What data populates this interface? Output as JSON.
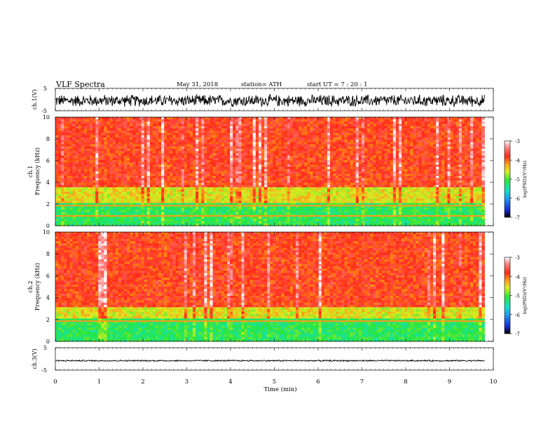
{
  "header": {
    "title": "VLF  Spectra",
    "date": "May 31, 2018",
    "station": "station= ATH",
    "start": "start  UT  =    7  : 20 : 1"
  },
  "colors": {
    "noise_trace": "#000000",
    "colormap": [
      "#000000",
      "#1a2bd6",
      "#1e9ef0",
      "#14e0c8",
      "#28e63c",
      "#d8ee20",
      "#ff9a1a",
      "#ff2a1a",
      "#ff8c8c",
      "#ffffff"
    ]
  },
  "chart_data": [
    {
      "type": "line",
      "panel": "ch1-waveform",
      "ylabel": "ch.1(V)",
      "ylim": [
        -5,
        5
      ],
      "yticks": [
        "5",
        "-5"
      ],
      "xlim": [
        0,
        10
      ],
      "signal": {
        "mean": -0.5,
        "amplitude": 3.0,
        "duration_min": 9.8
      }
    },
    {
      "type": "heatmap",
      "panel": "ch1-spectrogram",
      "ylabel": "ch.1\nFrequency (kHz)",
      "ylim": [
        0,
        10
      ],
      "yticks": [
        "10",
        "8",
        "6",
        "4",
        "2",
        "0"
      ],
      "xlim": [
        0,
        10
      ],
      "duration_min": 9.8,
      "colorbar": {
        "label": "log(PSD)(V²/Hz)",
        "range": [
          -7,
          -3
        ],
        "ticks": [
          "-3",
          "-4",
          "-5",
          "-6",
          "-7"
        ]
      },
      "bands_khz": [
        {
          "from": 0,
          "to": 2,
          "level_log_psd": -5.2
        },
        {
          "from": 2,
          "to": 3.5,
          "level_log_psd": -4.6
        },
        {
          "from": 3.5,
          "to": 10,
          "level_log_psd": -3.9
        }
      ],
      "tones_khz": [
        0.9,
        1.85
      ]
    },
    {
      "type": "heatmap",
      "panel": "ch2-spectrogram",
      "ylabel": "ch.2\nFrequency (kHz)",
      "ylim": [
        0,
        10
      ],
      "yticks": [
        "10",
        "8",
        "6",
        "4",
        "2",
        "0"
      ],
      "xlim": [
        0,
        10
      ],
      "duration_min": 9.8,
      "colorbar": {
        "label": "log(PSD)(V²/Hz)",
        "range": [
          -7,
          -3
        ],
        "ticks": [
          "-3",
          "-4",
          "-5",
          "-6",
          "-7"
        ]
      },
      "bands_khz": [
        {
          "from": 0,
          "to": 2,
          "level_log_psd": -5.2
        },
        {
          "from": 2,
          "to": 3.2,
          "level_log_psd": -4.6
        },
        {
          "from": 3.2,
          "to": 10,
          "level_log_psd": -3.9
        }
      ],
      "tones_khz": [
        1.85
      ]
    },
    {
      "type": "line",
      "panel": "ch3-waveform",
      "ylabel": "ch.3(V)",
      "ylim": [
        -5,
        5
      ],
      "yticks": [
        "5",
        "-5"
      ],
      "xlim": [
        0,
        10
      ],
      "xlabel": "Time  (min)",
      "xticks": [
        "0",
        "1",
        "2",
        "3",
        "4",
        "5",
        "6",
        "7",
        "8",
        "9",
        "10"
      ],
      "signal": {
        "mean": -0.8,
        "amplitude": 0.35,
        "duration_min": 9.8
      }
    }
  ]
}
